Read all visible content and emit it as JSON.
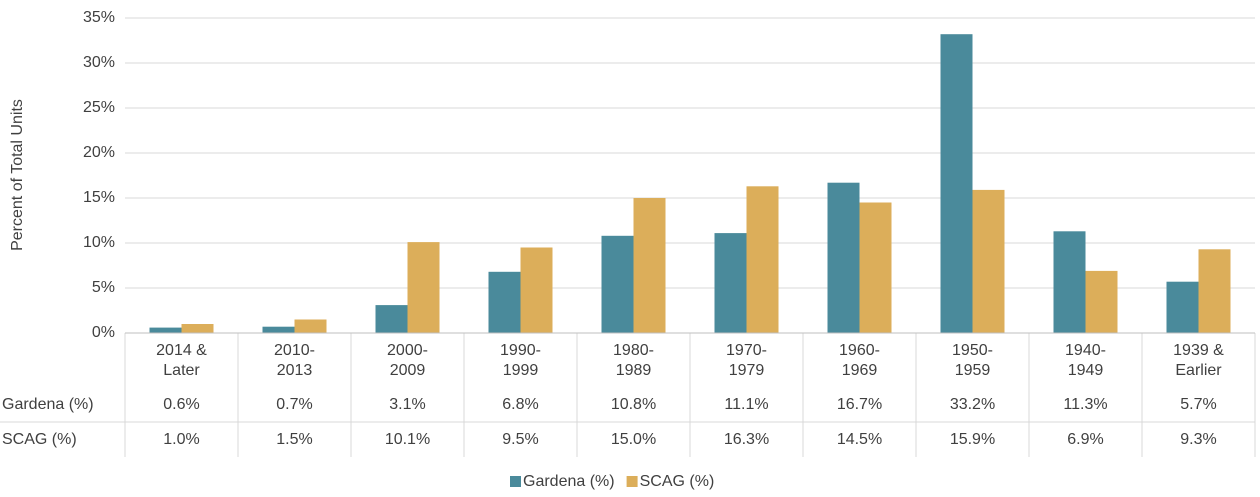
{
  "chart_data": {
    "type": "bar",
    "y_label": "Percent of Total Units",
    "categories": [
      "2014 & Later",
      "2010-2013",
      "2000-2009",
      "1990-1999",
      "1980-1989",
      "1970-1979",
      "1960-1969",
      "1950-1959",
      "1940-1949",
      "1939 & Earlier"
    ],
    "series": [
      {
        "name": "Gardena (%)",
        "color": "#4a8a9b",
        "values": [
          0.6,
          0.7,
          3.1,
          6.8,
          10.8,
          11.1,
          16.7,
          33.2,
          11.3,
          5.7
        ],
        "value_labels": [
          "0.6%",
          "0.7%",
          "3.1%",
          "6.8%",
          "10.8%",
          "11.1%",
          "16.7%",
          "33.2%",
          "11.3%",
          "5.7%"
        ]
      },
      {
        "name": "SCAG (%)",
        "color": "#dcae5a",
        "values": [
          1.0,
          1.5,
          10.1,
          9.5,
          15.0,
          16.3,
          14.5,
          15.9,
          6.9,
          9.3
        ],
        "value_labels": [
          "1.0%",
          "1.5%",
          "10.1%",
          "9.5%",
          "15.0%",
          "16.3%",
          "14.5%",
          "15.9%",
          "6.9%",
          "9.3%"
        ]
      }
    ],
    "ylim": [
      0,
      35
    ],
    "yticks": [
      {
        "value": 0,
        "label": "0%"
      },
      {
        "value": 5,
        "label": "5%"
      },
      {
        "value": 10,
        "label": "10%"
      },
      {
        "value": 15,
        "label": "15%"
      },
      {
        "value": 20,
        "label": "20%"
      },
      {
        "value": 25,
        "label": "25%"
      },
      {
        "value": 30,
        "label": "30%"
      },
      {
        "value": 35,
        "label": "35%"
      }
    ],
    "grid": true,
    "legend": "bottom"
  }
}
